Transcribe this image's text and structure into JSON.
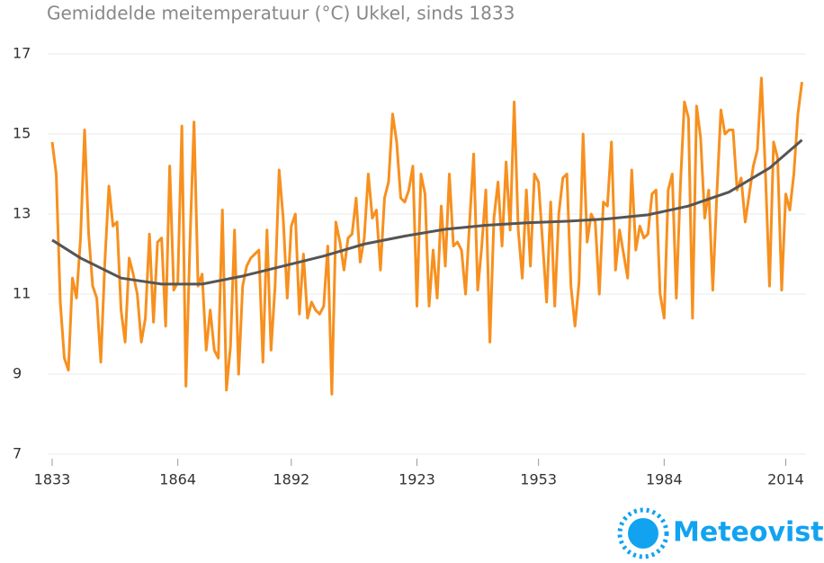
{
  "chart_data": {
    "type": "line",
    "title": "Gemiddelde meitemperatuur (°C)  Ukkel, sinds 1833",
    "brand": "Meteovista",
    "x": [
      1833,
      1834,
      1835,
      1836,
      1837,
      1838,
      1839,
      1840,
      1841,
      1842,
      1843,
      1844,
      1845,
      1846,
      1847,
      1848,
      1849,
      1850,
      1851,
      1852,
      1853,
      1854,
      1855,
      1856,
      1857,
      1858,
      1859,
      1860,
      1861,
      1862,
      1863,
      1864,
      1865,
      1866,
      1867,
      1868,
      1869,
      1870,
      1871,
      1872,
      1873,
      1874,
      1875,
      1876,
      1877,
      1878,
      1879,
      1880,
      1881,
      1882,
      1883,
      1884,
      1885,
      1886,
      1887,
      1888,
      1889,
      1890,
      1891,
      1892,
      1893,
      1894,
      1895,
      1896,
      1897,
      1898,
      1899,
      1900,
      1901,
      1902,
      1903,
      1904,
      1905,
      1906,
      1907,
      1908,
      1909,
      1910,
      1911,
      1912,
      1913,
      1914,
      1915,
      1916,
      1917,
      1918,
      1919,
      1920,
      1921,
      1922,
      1923,
      1924,
      1925,
      1926,
      1927,
      1928,
      1929,
      1930,
      1931,
      1932,
      1933,
      1934,
      1935,
      1936,
      1937,
      1938,
      1939,
      1940,
      1941,
      1942,
      1943,
      1944,
      1945,
      1946,
      1947,
      1948,
      1949,
      1950,
      1951,
      1952,
      1953,
      1954,
      1955,
      1956,
      1957,
      1958,
      1959,
      1960,
      1961,
      1962,
      1963,
      1964,
      1965,
      1966,
      1967,
      1968,
      1969,
      1970,
      1971,
      1972,
      1973,
      1974,
      1975,
      1976,
      1977,
      1978,
      1979,
      1980,
      1981,
      1982,
      1983,
      1984,
      1985,
      1986,
      1987,
      1988,
      1989,
      1990,
      1991,
      1992,
      1993,
      1994,
      1995,
      1996,
      1997,
      1998,
      1999,
      2000,
      2001,
      2002,
      2003,
      2004,
      2005,
      2006,
      2007,
      2008,
      2009,
      2010,
      2011,
      2012,
      2013,
      2014,
      2015,
      2016,
      2017,
      2018
    ],
    "series": [
      {
        "color": "#f7901e",
        "values": [
          14.8,
          14.0,
          10.8,
          9.4,
          9.1,
          11.4,
          10.9,
          12.4,
          15.1,
          12.5,
          11.2,
          10.9,
          9.3,
          11.8,
          13.7,
          12.7,
          12.8,
          10.6,
          9.8,
          11.9,
          11.5,
          11.0,
          9.8,
          10.4,
          12.5,
          10.3,
          12.3,
          12.4,
          10.2,
          14.2,
          11.1,
          11.3,
          15.2,
          8.7,
          12.3,
          15.3,
          11.2,
          11.5,
          9.6,
          10.6,
          9.6,
          9.4,
          13.1,
          8.6,
          9.7,
          12.6,
          9.0,
          11.2,
          11.7,
          11.9,
          12.0,
          12.1,
          9.3,
          12.6,
          9.6,
          11.2,
          14.1,
          12.9,
          10.9,
          12.7,
          13.0,
          10.5,
          12.0,
          10.4,
          10.8,
          10.6,
          10.5,
          10.7,
          12.2,
          8.5,
          12.8,
          12.3,
          11.6,
          12.4,
          12.5,
          13.4,
          11.8,
          12.4,
          14.0,
          12.9,
          13.1,
          11.6,
          13.4,
          13.8,
          15.5,
          14.8,
          13.4,
          13.3,
          13.6,
          14.2,
          10.7,
          14.0,
          13.5,
          10.7,
          12.1,
          10.9,
          13.2,
          11.7,
          14.0,
          12.2,
          12.3,
          12.1,
          11.0,
          12.8,
          14.5,
          11.1,
          12.2,
          13.6,
          9.8,
          12.9,
          13.8,
          12.2,
          14.3,
          12.6,
          15.8,
          12.6,
          11.4,
          13.6,
          11.7,
          14.0,
          13.8,
          12.3,
          10.8,
          13.3,
          10.7,
          13.0,
          13.9,
          14.0,
          11.2,
          10.2,
          11.3,
          15.0,
          12.3,
          13.0,
          12.8,
          11.0,
          13.3,
          13.2,
          14.8,
          11.6,
          12.6,
          12.0,
          11.4,
          14.1,
          12.1,
          12.7,
          12.4,
          12.5,
          13.5,
          13.6,
          11.0,
          10.4,
          13.6,
          14.0,
          10.9,
          13.7,
          15.8,
          15.4,
          10.4,
          15.7,
          14.9,
          12.9,
          13.6,
          11.1,
          13.5,
          15.6,
          15.0,
          15.1,
          15.1,
          13.6,
          13.9,
          12.8,
          13.5,
          14.2,
          14.6,
          16.4,
          14.0,
          11.2,
          14.8,
          14.4,
          11.1,
          13.5,
          13.1,
          14.0,
          15.5,
          16.3
        ]
      },
      {
        "color": "#555555",
        "x": [
          1833,
          1840,
          1850,
          1860,
          1870,
          1880,
          1890,
          1900,
          1910,
          1920,
          1930,
          1940,
          1950,
          1960,
          1970,
          1980,
          1990,
          2000,
          2010,
          2018
        ],
        "values": [
          12.35,
          11.9,
          11.4,
          11.25,
          11.25,
          11.45,
          11.7,
          11.95,
          12.25,
          12.45,
          12.62,
          12.72,
          12.78,
          12.82,
          12.88,
          12.98,
          13.2,
          13.55,
          14.15,
          14.85
        ]
      }
    ],
    "xlim": [
      1833,
      2019
    ],
    "xticks": [
      1833,
      1864,
      1892,
      1923,
      1953,
      1984,
      2014
    ],
    "ylim": [
      7,
      17
    ],
    "yticks": [
      7,
      9,
      11,
      13,
      15,
      17
    ],
    "grid": true
  }
}
